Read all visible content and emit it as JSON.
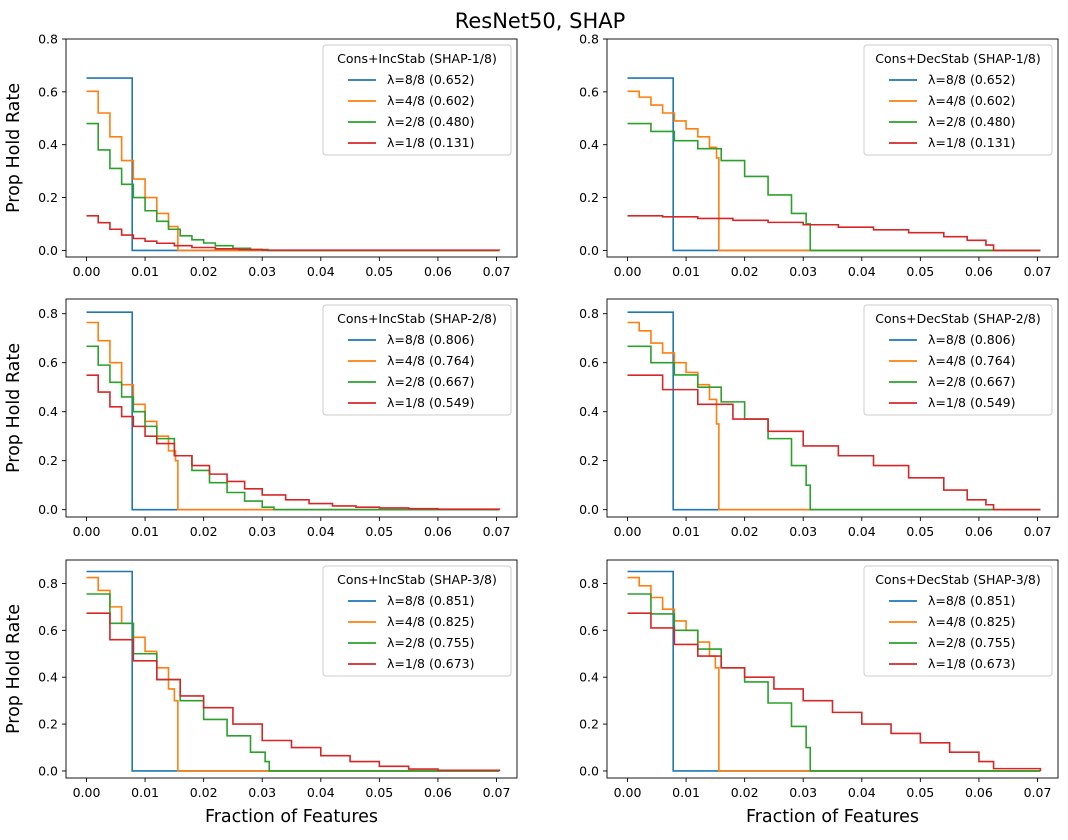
{
  "figure": {
    "title": "ResNet50, SHAP",
    "ylabel": "Prop Hold Rate",
    "xlabel": "Fraction of Features"
  },
  "colors": {
    "series": [
      "#1f77b4",
      "#ff7f0e",
      "#2ca02c",
      "#d62728"
    ],
    "axes": "#000000",
    "legend_border": "#cccccc"
  },
  "chart_data": [
    {
      "type": "line",
      "title": "",
      "legend_title": "Cons+IncStab (SHAP-1/8)",
      "legend_position": "top-right",
      "xlim": [
        -0.0035,
        0.0735
      ],
      "ylim": [
        -0.025,
        0.8
      ],
      "xticks": [
        0.0,
        0.01,
        0.02,
        0.03,
        0.04,
        0.05,
        0.06,
        0.07
      ],
      "xtick_labels": [
        "0.00",
        "0.01",
        "0.02",
        "0.03",
        "0.04",
        "0.05",
        "0.06",
        "0.07"
      ],
      "yticks": [
        0.0,
        0.2,
        0.4,
        0.6,
        0.8
      ],
      "ytick_labels": [
        "0.0",
        "0.2",
        "0.4",
        "0.6",
        "0.8"
      ],
      "xlabel": "",
      "ylabel": "Prop Hold Rate",
      "grid": false,
      "series": [
        {
          "name": "λ=8/8 (0.652)",
          "x": [
            0.0,
            0.0078,
            0.0078,
            0.0705
          ],
          "y": [
            0.652,
            0.652,
            0.0,
            0.0
          ]
        },
        {
          "name": "λ=4/8 (0.602)",
          "x": [
            0.0,
            0.002,
            0.004,
            0.006,
            0.008,
            0.01,
            0.012,
            0.014,
            0.0156,
            0.0156,
            0.0705
          ],
          "y": [
            0.602,
            0.52,
            0.43,
            0.34,
            0.27,
            0.2,
            0.14,
            0.09,
            0.06,
            0.0,
            0.0
          ]
        },
        {
          "name": "λ=2/8 (0.480)",
          "x": [
            0.0,
            0.002,
            0.004,
            0.006,
            0.008,
            0.01,
            0.012,
            0.014,
            0.016,
            0.018,
            0.02,
            0.022,
            0.025,
            0.028,
            0.031,
            0.0705
          ],
          "y": [
            0.48,
            0.38,
            0.31,
            0.25,
            0.2,
            0.15,
            0.11,
            0.08,
            0.055,
            0.04,
            0.028,
            0.018,
            0.008,
            0.003,
            0.0,
            0.0
          ]
        },
        {
          "name": "λ=1/8 (0.131)",
          "x": [
            0.0,
            0.002,
            0.004,
            0.006,
            0.008,
            0.01,
            0.012,
            0.015,
            0.018,
            0.022,
            0.026,
            0.03,
            0.0705
          ],
          "y": [
            0.131,
            0.105,
            0.08,
            0.058,
            0.045,
            0.035,
            0.027,
            0.018,
            0.011,
            0.006,
            0.003,
            0.001,
            0.0
          ]
        }
      ]
    },
    {
      "type": "line",
      "title": "",
      "legend_title": "Cons+DecStab (SHAP-1/8)",
      "legend_position": "top-right",
      "xlim": [
        -0.0035,
        0.0735
      ],
      "ylim": [
        -0.025,
        0.8
      ],
      "xticks": [
        0.0,
        0.01,
        0.02,
        0.03,
        0.04,
        0.05,
        0.06,
        0.07
      ],
      "xtick_labels": [
        "0.00",
        "0.01",
        "0.02",
        "0.03",
        "0.04",
        "0.05",
        "0.06",
        "0.07"
      ],
      "yticks": [
        0.0,
        0.2,
        0.4,
        0.6,
        0.8
      ],
      "ytick_labels": [
        "0.0",
        "0.2",
        "0.4",
        "0.6",
        "0.8"
      ],
      "xlabel": "",
      "ylabel": "",
      "grid": false,
      "series": [
        {
          "name": "λ=8/8 (0.652)",
          "x": [
            0.0,
            0.0078,
            0.0078,
            0.0705
          ],
          "y": [
            0.652,
            0.652,
            0.0,
            0.0
          ]
        },
        {
          "name": "λ=4/8 (0.602)",
          "x": [
            0.0,
            0.002,
            0.004,
            0.006,
            0.008,
            0.01,
            0.012,
            0.014,
            0.0152,
            0.0156,
            0.0156,
            0.0705
          ],
          "y": [
            0.602,
            0.58,
            0.55,
            0.52,
            0.49,
            0.46,
            0.43,
            0.39,
            0.35,
            0.33,
            0.0,
            0.0
          ]
        },
        {
          "name": "λ=2/8 (0.480)",
          "x": [
            0.0,
            0.004,
            0.008,
            0.012,
            0.016,
            0.02,
            0.024,
            0.028,
            0.0305,
            0.0312,
            0.0312,
            0.0705
          ],
          "y": [
            0.48,
            0.45,
            0.415,
            0.385,
            0.34,
            0.28,
            0.21,
            0.14,
            0.1,
            0.08,
            0.0,
            0.0
          ]
        },
        {
          "name": "λ=1/8 (0.131)",
          "x": [
            0.0,
            0.006,
            0.012,
            0.018,
            0.024,
            0.03,
            0.036,
            0.042,
            0.048,
            0.054,
            0.058,
            0.0612,
            0.0625,
            0.0625,
            0.0705
          ],
          "y": [
            0.131,
            0.127,
            0.121,
            0.114,
            0.106,
            0.097,
            0.088,
            0.078,
            0.067,
            0.052,
            0.038,
            0.02,
            0.01,
            0.0,
            0.0
          ]
        }
      ]
    },
    {
      "type": "line",
      "title": "",
      "legend_title": "Cons+IncStab (SHAP-2/8)",
      "legend_position": "top-right",
      "xlim": [
        -0.0035,
        0.0735
      ],
      "ylim": [
        -0.03,
        0.86
      ],
      "xticks": [
        0.0,
        0.01,
        0.02,
        0.03,
        0.04,
        0.05,
        0.06,
        0.07
      ],
      "xtick_labels": [
        "0.00",
        "0.01",
        "0.02",
        "0.03",
        "0.04",
        "0.05",
        "0.06",
        "0.07"
      ],
      "yticks": [
        0.0,
        0.2,
        0.4,
        0.6,
        0.8
      ],
      "ytick_labels": [
        "0.0",
        "0.2",
        "0.4",
        "0.6",
        "0.8"
      ],
      "xlabel": "",
      "ylabel": "Prop Hold Rate",
      "grid": false,
      "series": [
        {
          "name": "λ=8/8 (0.806)",
          "x": [
            0.0,
            0.0078,
            0.0078,
            0.0705
          ],
          "y": [
            0.806,
            0.806,
            0.0,
            0.0
          ]
        },
        {
          "name": "λ=4/8 (0.764)",
          "x": [
            0.0,
            0.002,
            0.004,
            0.006,
            0.008,
            0.01,
            0.012,
            0.014,
            0.0152,
            0.0156,
            0.0156,
            0.0705
          ],
          "y": [
            0.764,
            0.69,
            0.6,
            0.51,
            0.43,
            0.36,
            0.3,
            0.24,
            0.2,
            0.19,
            0.0,
            0.0
          ]
        },
        {
          "name": "λ=2/8 (0.667)",
          "x": [
            0.0,
            0.002,
            0.004,
            0.006,
            0.008,
            0.01,
            0.012,
            0.015,
            0.018,
            0.021,
            0.024,
            0.027,
            0.03,
            0.032,
            0.0705
          ],
          "y": [
            0.667,
            0.59,
            0.52,
            0.46,
            0.4,
            0.34,
            0.29,
            0.22,
            0.16,
            0.11,
            0.07,
            0.035,
            0.01,
            0.0,
            0.0
          ]
        },
        {
          "name": "λ=1/8 (0.549)",
          "x": [
            0.0,
            0.002,
            0.004,
            0.006,
            0.008,
            0.01,
            0.012,
            0.015,
            0.018,
            0.021,
            0.024,
            0.027,
            0.03,
            0.034,
            0.038,
            0.042,
            0.046,
            0.05,
            0.055,
            0.06,
            0.0705
          ],
          "y": [
            0.549,
            0.48,
            0.42,
            0.38,
            0.34,
            0.3,
            0.27,
            0.22,
            0.18,
            0.145,
            0.115,
            0.085,
            0.06,
            0.04,
            0.025,
            0.015,
            0.01,
            0.007,
            0.004,
            0.002,
            0.0
          ]
        }
      ]
    },
    {
      "type": "line",
      "title": "",
      "legend_title": "Cons+DecStab (SHAP-2/8)",
      "legend_position": "top-right",
      "xlim": [
        -0.0035,
        0.0735
      ],
      "ylim": [
        -0.03,
        0.86
      ],
      "xticks": [
        0.0,
        0.01,
        0.02,
        0.03,
        0.04,
        0.05,
        0.06,
        0.07
      ],
      "xtick_labels": [
        "0.00",
        "0.01",
        "0.02",
        "0.03",
        "0.04",
        "0.05",
        "0.06",
        "0.07"
      ],
      "yticks": [
        0.0,
        0.2,
        0.4,
        0.6,
        0.8
      ],
      "ytick_labels": [
        "0.0",
        "0.2",
        "0.4",
        "0.6",
        "0.8"
      ],
      "xlabel": "",
      "ylabel": "",
      "grid": false,
      "series": [
        {
          "name": "λ=8/8 (0.806)",
          "x": [
            0.0,
            0.0078,
            0.0078,
            0.0705
          ],
          "y": [
            0.806,
            0.806,
            0.0,
            0.0
          ]
        },
        {
          "name": "λ=4/8 (0.764)",
          "x": [
            0.0,
            0.002,
            0.004,
            0.006,
            0.008,
            0.01,
            0.012,
            0.014,
            0.0152,
            0.0156,
            0.0156,
            0.0705
          ],
          "y": [
            0.764,
            0.73,
            0.68,
            0.64,
            0.6,
            0.56,
            0.51,
            0.45,
            0.35,
            0.22,
            0.0,
            0.0
          ]
        },
        {
          "name": "λ=2/8 (0.667)",
          "x": [
            0.0,
            0.004,
            0.008,
            0.012,
            0.016,
            0.02,
            0.024,
            0.028,
            0.0305,
            0.0312,
            0.0312,
            0.0705
          ],
          "y": [
            0.667,
            0.6,
            0.55,
            0.5,
            0.44,
            0.37,
            0.29,
            0.18,
            0.1,
            0.08,
            0.0,
            0.0
          ]
        },
        {
          "name": "λ=1/8 (0.549)",
          "x": [
            0.0,
            0.006,
            0.012,
            0.018,
            0.024,
            0.03,
            0.036,
            0.042,
            0.048,
            0.054,
            0.058,
            0.0612,
            0.0625,
            0.0705
          ],
          "y": [
            0.549,
            0.49,
            0.43,
            0.37,
            0.32,
            0.26,
            0.22,
            0.18,
            0.13,
            0.08,
            0.04,
            0.02,
            0.0,
            0.0
          ]
        }
      ]
    },
    {
      "type": "line",
      "title": "",
      "legend_title": "Cons+IncStab (SHAP-3/8)",
      "legend_position": "top-right",
      "xlim": [
        -0.0035,
        0.0735
      ],
      "ylim": [
        -0.03,
        0.9
      ],
      "xticks": [
        0.0,
        0.01,
        0.02,
        0.03,
        0.04,
        0.05,
        0.06,
        0.07
      ],
      "xtick_labels": [
        "0.00",
        "0.01",
        "0.02",
        "0.03",
        "0.04",
        "0.05",
        "0.06",
        "0.07"
      ],
      "yticks": [
        0.0,
        0.2,
        0.4,
        0.6,
        0.8
      ],
      "ytick_labels": [
        "0.0",
        "0.2",
        "0.4",
        "0.6",
        "0.8"
      ],
      "xlabel": "Fraction of Features",
      "ylabel": "Prop Hold Rate",
      "grid": false,
      "series": [
        {
          "name": "λ=8/8 (0.851)",
          "x": [
            0.0,
            0.0078,
            0.0078,
            0.0705
          ],
          "y": [
            0.851,
            0.851,
            0.0,
            0.0
          ]
        },
        {
          "name": "λ=4/8 (0.825)",
          "x": [
            0.0,
            0.002,
            0.004,
            0.006,
            0.008,
            0.01,
            0.012,
            0.014,
            0.015,
            0.0156,
            0.0156,
            0.0705
          ],
          "y": [
            0.825,
            0.77,
            0.7,
            0.63,
            0.57,
            0.51,
            0.44,
            0.35,
            0.3,
            0.28,
            0.0,
            0.0
          ]
        },
        {
          "name": "λ=2/8 (0.755)",
          "x": [
            0.0,
            0.004,
            0.008,
            0.012,
            0.016,
            0.02,
            0.024,
            0.028,
            0.0305,
            0.0312,
            0.0312,
            0.0705
          ],
          "y": [
            0.755,
            0.63,
            0.5,
            0.39,
            0.3,
            0.22,
            0.15,
            0.08,
            0.04,
            0.02,
            0.0,
            0.0
          ]
        },
        {
          "name": "λ=1/8 (0.673)",
          "x": [
            0.0,
            0.004,
            0.008,
            0.012,
            0.016,
            0.02,
            0.025,
            0.03,
            0.035,
            0.04,
            0.045,
            0.05,
            0.055,
            0.06,
            0.0705
          ],
          "y": [
            0.673,
            0.56,
            0.47,
            0.39,
            0.32,
            0.27,
            0.2,
            0.13,
            0.1,
            0.065,
            0.04,
            0.02,
            0.008,
            0.003,
            0.0
          ]
        }
      ]
    },
    {
      "type": "line",
      "title": "",
      "legend_title": "Cons+DecStab (SHAP-3/8)",
      "legend_position": "top-right",
      "xlim": [
        -0.0035,
        0.0735
      ],
      "ylim": [
        -0.03,
        0.9
      ],
      "xticks": [
        0.0,
        0.01,
        0.02,
        0.03,
        0.04,
        0.05,
        0.06,
        0.07
      ],
      "xtick_labels": [
        "0.00",
        "0.01",
        "0.02",
        "0.03",
        "0.04",
        "0.05",
        "0.06",
        "0.07"
      ],
      "yticks": [
        0.0,
        0.2,
        0.4,
        0.6,
        0.8
      ],
      "ytick_labels": [
        "0.0",
        "0.2",
        "0.4",
        "0.6",
        "0.8"
      ],
      "xlabel": "Fraction of Features",
      "ylabel": "",
      "grid": false,
      "series": [
        {
          "name": "λ=8/8 (0.851)",
          "x": [
            0.0,
            0.0078,
            0.0078,
            0.0705
          ],
          "y": [
            0.851,
            0.851,
            0.0,
            0.0
          ]
        },
        {
          "name": "λ=4/8 (0.825)",
          "x": [
            0.0,
            0.002,
            0.004,
            0.006,
            0.008,
            0.01,
            0.012,
            0.014,
            0.015,
            0.0156,
            0.0156,
            0.0705
          ],
          "y": [
            0.825,
            0.79,
            0.74,
            0.69,
            0.64,
            0.6,
            0.55,
            0.49,
            0.44,
            0.4,
            0.0,
            0.0
          ]
        },
        {
          "name": "λ=2/8 (0.755)",
          "x": [
            0.0,
            0.004,
            0.008,
            0.012,
            0.016,
            0.02,
            0.024,
            0.028,
            0.0305,
            0.0312,
            0.0312,
            0.0705
          ],
          "y": [
            0.755,
            0.67,
            0.6,
            0.52,
            0.44,
            0.38,
            0.29,
            0.19,
            0.1,
            0.08,
            0.0,
            0.0
          ]
        },
        {
          "name": "λ=1/8 (0.673)",
          "x": [
            0.0,
            0.004,
            0.008,
            0.012,
            0.016,
            0.02,
            0.025,
            0.03,
            0.035,
            0.04,
            0.045,
            0.05,
            0.055,
            0.06,
            0.0625,
            0.0705
          ],
          "y": [
            0.673,
            0.61,
            0.54,
            0.49,
            0.44,
            0.4,
            0.35,
            0.3,
            0.25,
            0.2,
            0.16,
            0.12,
            0.08,
            0.04,
            0.01,
            0.0
          ]
        }
      ]
    }
  ]
}
